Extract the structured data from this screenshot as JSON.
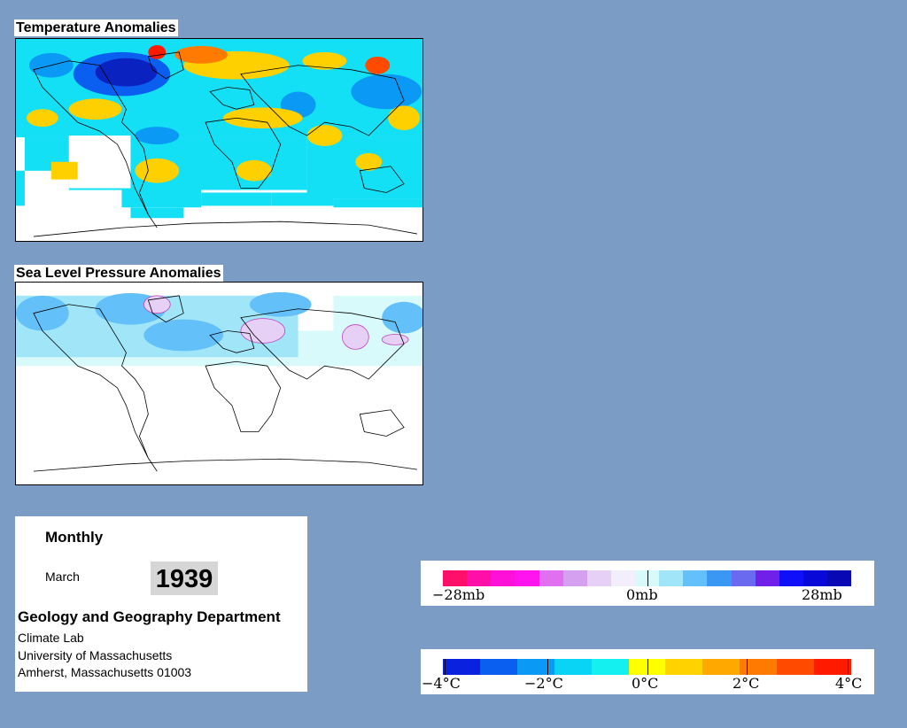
{
  "maps": {
    "temperature": {
      "title": "Temperature Anomalies"
    },
    "pressure": {
      "title": "Sea Level Pressure Anomalies"
    }
  },
  "info": {
    "period": "Monthly",
    "month": "March",
    "year": "1939",
    "department": "Geology and Geography Department",
    "lab": "Climate Lab",
    "university": "University of Massachusetts",
    "address": "Amherst, Massachusetts 01003"
  },
  "pressure_legend": {
    "labels": [
      "−28mb",
      "0mb",
      "28mb"
    ],
    "colors": [
      "#ff0f6a",
      "#ff0fa8",
      "#ff10d8",
      "#ff14f0",
      "#e070f0",
      "#d6a0f0",
      "#e6d0f6",
      "#f2eefc",
      "#d8fafa",
      "#a0e6f8",
      "#64c0f8",
      "#3a98f4",
      "#6a6af0",
      "#7020e8",
      "#1010f8",
      "#0808d8",
      "#0808b4"
    ]
  },
  "temperature_legend": {
    "labels": [
      "−4°C",
      "−2°C",
      "0°C",
      "2°C",
      "4°C"
    ],
    "colors": [
      "#0a22e0",
      "#0a5ef0",
      "#0a9af5",
      "#0ad4f5",
      "#14f0f0",
      "#ffff00",
      "#ffd200",
      "#ffa800",
      "#ff7a00",
      "#ff4a00",
      "#ff1a00"
    ]
  }
}
